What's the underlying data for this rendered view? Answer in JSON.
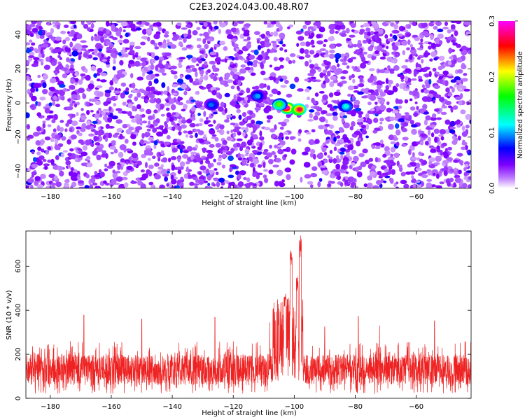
{
  "title": "C2E3.2024.043.00.48.R07",
  "chart_data": [
    {
      "type": "heatmap",
      "xlabel": "Height of straight line (km)",
      "ylabel": "Frequency (Hz)",
      "xlim": [
        -188,
        -42
      ],
      "ylim": [
        -50,
        48
      ],
      "x_ticks": [
        -180,
        -160,
        -140,
        -120,
        -100,
        -80,
        -60
      ],
      "y_ticks": [
        -40,
        -20,
        0,
        20,
        40
      ],
      "colorbar": {
        "label": "Normalized spectral amplitude",
        "range": [
          0.0,
          0.3
        ],
        "ticks": [
          0.0,
          0.1,
          0.2,
          0.3
        ],
        "colors": [
          "#ffffff",
          "#8000ff",
          "#0000ff",
          "#00ffff",
          "#00ff00",
          "#ffff00",
          "#ff0000",
          "#ff00ff"
        ]
      },
      "background_level": 0.035,
      "hotspots": [
        {
          "x": -102.5,
          "y": -3,
          "amplitude": 0.29
        },
        {
          "x": -98.5,
          "y": -4,
          "amplitude": 0.27
        },
        {
          "x": -105,
          "y": -1,
          "amplitude": 0.18
        },
        {
          "x": -83,
          "y": -2,
          "amplitude": 0.12
        },
        {
          "x": -112,
          "y": 4,
          "amplitude": 0.1
        },
        {
          "x": -127,
          "y": -1,
          "amplitude": 0.09
        }
      ],
      "quiet_bands": [
        [
          -104,
          -96
        ]
      ]
    },
    {
      "type": "line",
      "xlabel": "Height of straight line (km)",
      "ylabel": "SNR (10 * v/v)",
      "xlim": [
        -188,
        -42
      ],
      "ylim": [
        0,
        760
      ],
      "x_ticks": [
        -180,
        -160,
        -140,
        -120,
        -100,
        -80,
        -60
      ],
      "y_ticks": [
        0,
        200,
        400,
        600
      ],
      "series": [
        {
          "color": "#ee2222",
          "baseline_mean": 130,
          "baseline_spread": 70,
          "max_envelope": 260,
          "burst_region": [
            -107,
            -97
          ],
          "burst_peaks": [
            {
              "x": -101,
              "y": 690
            },
            {
              "x": -99,
              "y": 560
            },
            {
              "x": -98,
              "y": 755
            },
            {
              "x": -103,
              "y": 480
            }
          ],
          "occasional_spikes": [
            {
              "x": -169,
              "y": 378
            },
            {
              "x": -150,
              "y": 360
            },
            {
              "x": -126,
              "y": 368
            },
            {
              "x": -108,
              "y": 345
            },
            {
              "x": -90,
              "y": 325
            },
            {
              "x": -79,
              "y": 372
            },
            {
              "x": -54,
              "y": 352
            },
            {
              "x": -72,
              "y": 330
            }
          ]
        }
      ]
    }
  ]
}
